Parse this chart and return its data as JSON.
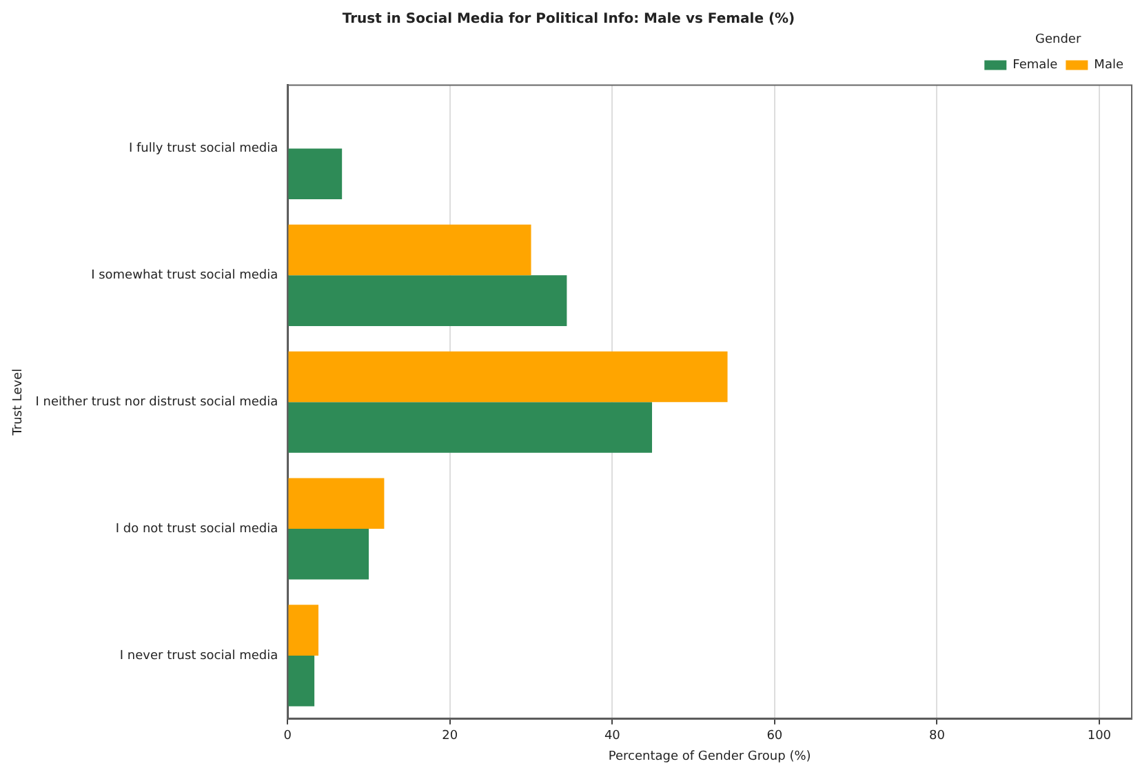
{
  "chart_data": {
    "type": "bar",
    "orientation": "horizontal",
    "title": "Trust in Social Media for Political Info: Male vs Female (%)",
    "xlabel": "Percentage of Gender Group (%)",
    "ylabel": "Trust Level",
    "legend_title": "Gender",
    "categories": [
      "I fully trust social media",
      "I somewhat trust social media",
      "I neither trust nor distrust social media",
      "I do not trust social media",
      "I never trust social media"
    ],
    "series": [
      {
        "name": "Male",
        "color": "#ffa500",
        "values": [
          null,
          30,
          54.2,
          11.9,
          3.8
        ]
      },
      {
        "name": "Female",
        "color": "#2e8b57",
        "values": [
          6.7,
          34.4,
          44.9,
          10.0,
          3.3
        ]
      }
    ],
    "xlim": [
      0,
      104
    ],
    "xticks": [
      0,
      20,
      40,
      60,
      80,
      100
    ],
    "grid": "x",
    "legend": "top right"
  }
}
